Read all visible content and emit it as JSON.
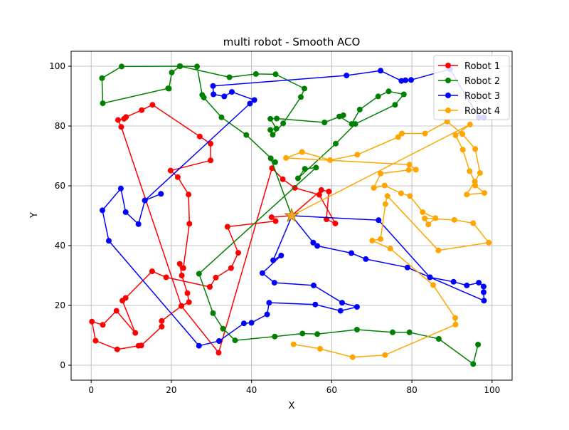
{
  "chart_data": {
    "type": "line",
    "title": "multi robot - Smooth ACO",
    "xlabel": "X",
    "ylabel": "Y",
    "xlim": [
      -5,
      105
    ],
    "ylim": [
      -5,
      105
    ],
    "xticks": [
      0,
      20,
      40,
      60,
      80,
      100
    ],
    "yticks": [
      0,
      20,
      40,
      60,
      80,
      100
    ],
    "grid": true,
    "legend_position": "top-right",
    "depot": {
      "x": 50,
      "y": 50,
      "marker": "star",
      "color": "#f5a623"
    },
    "series": [
      {
        "name": "Robot 1",
        "color": "#ff0000",
        "points": [
          [
            50,
            50
          ],
          [
            45,
            49.5
          ],
          [
            46,
            48.2
          ],
          [
            34,
            46.3
          ],
          [
            36.7,
            37.6
          ],
          [
            34.9,
            32.5
          ],
          [
            31.1,
            29.3
          ],
          [
            29.6,
            26.2
          ],
          [
            18.7,
            29.4
          ],
          [
            15.2,
            31.4
          ],
          [
            8.6,
            22.5
          ],
          [
            7.8,
            21.6
          ],
          [
            11,
            10.8
          ],
          [
            6.3,
            18.2
          ],
          [
            2.9,
            13.5
          ],
          [
            0.2,
            14.6
          ],
          [
            1.1,
            8.2
          ],
          [
            6.5,
            5.3
          ],
          [
            11.8,
            6.5
          ],
          [
            12.5,
            6.6
          ],
          [
            17.6,
            12.9
          ],
          [
            17.6,
            14.8
          ],
          [
            22.5,
            19.8
          ],
          [
            24.4,
            21.1
          ],
          [
            24,
            24.1
          ],
          [
            22.6,
            30
          ],
          [
            22.1,
            33.9
          ],
          [
            23,
            32.5
          ],
          [
            24.5,
            47.3
          ],
          [
            24.3,
            57.1
          ],
          [
            21.6,
            62.9
          ],
          [
            19.8,
            65.1
          ],
          [
            29.8,
            68.5
          ],
          [
            29.8,
            74.1
          ],
          [
            27.1,
            76.5
          ],
          [
            15.3,
            87.1
          ],
          [
            12.6,
            85.3
          ],
          [
            8.7,
            83
          ],
          [
            8.2,
            82.4
          ],
          [
            6.7,
            82
          ],
          [
            7.5,
            79.7
          ],
          [
            22.5,
            19.8
          ],
          [
            31.8,
            4.2
          ],
          [
            45.1,
            65.9
          ],
          [
            47.8,
            62.2
          ],
          [
            50.8,
            59.3
          ],
          [
            56.9,
            57
          ],
          [
            60.9,
            47.4
          ],
          [
            58.7,
            48.8
          ],
          [
            59.3,
            58.1
          ],
          [
            57.4,
            58.6
          ],
          [
            50,
            50
          ]
        ]
      },
      {
        "name": "Robot 2",
        "color": "#008000",
        "points": [
          [
            50,
            50
          ],
          [
            44.8,
            69.2
          ],
          [
            45.9,
            67.9
          ],
          [
            38.7,
            77
          ],
          [
            32.5,
            82.9
          ],
          [
            28.1,
            89.5
          ],
          [
            27.7,
            90.4
          ],
          [
            26.4,
            99.9
          ],
          [
            22.1,
            100
          ],
          [
            7.6,
            99.9
          ],
          [
            2.7,
            96
          ],
          [
            2.9,
            87.6
          ],
          [
            19.2,
            92.6
          ],
          [
            19.4,
            92.5
          ],
          [
            20.1,
            97.9
          ],
          [
            22.2,
            100
          ],
          [
            34.5,
            96.3
          ],
          [
            41.1,
            97.4
          ],
          [
            46,
            97.3
          ],
          [
            53.2,
            92.5
          ],
          [
            52.3,
            89.7
          ],
          [
            47.9,
            80.9
          ],
          [
            45.3,
            77.1
          ],
          [
            44.7,
            78.7
          ],
          [
            46.2,
            79.1
          ],
          [
            44.7,
            82.4
          ],
          [
            46.3,
            82.5
          ],
          [
            58.2,
            81.2
          ],
          [
            62.9,
            83.6
          ],
          [
            61.9,
            83.2
          ],
          [
            65,
            80.7
          ],
          [
            67,
            85.5
          ],
          [
            71.6,
            89.9
          ],
          [
            74.2,
            91.6
          ],
          [
            78,
            90.6
          ],
          [
            75.8,
            87.1
          ],
          [
            65.9,
            80.7
          ],
          [
            61,
            74.1
          ],
          [
            51.6,
            62.5
          ],
          [
            53.3,
            65.7
          ],
          [
            56.1,
            66.1
          ],
          [
            26.9,
            30.6
          ],
          [
            30.4,
            17.4
          ],
          [
            32.9,
            12.2
          ],
          [
            35.9,
            8.3
          ],
          [
            45.8,
            9.6
          ],
          [
            52.7,
            10.6
          ],
          [
            56.4,
            10.4
          ],
          [
            66.3,
            11.9
          ],
          [
            75.2,
            11
          ],
          [
            79.4,
            11
          ],
          [
            86.7,
            8.8
          ],
          [
            95.3,
            0.4
          ],
          [
            96.5,
            6.9
          ]
        ]
      },
      {
        "name": "Robot 3",
        "color": "#0000ff",
        "points": [
          [
            50,
            50
          ],
          [
            55.4,
            41
          ],
          [
            56.4,
            39.9
          ],
          [
            64.9,
            37.5
          ],
          [
            68.5,
            35.5
          ],
          [
            78.9,
            32.7
          ],
          [
            84.5,
            29.4
          ],
          [
            90.4,
            27.9
          ],
          [
            93.7,
            26.7
          ],
          [
            96.7,
            27.6
          ],
          [
            97.9,
            26.3
          ],
          [
            97.9,
            24.4
          ],
          [
            98,
            21.6
          ],
          [
            84.5,
            29.4
          ],
          [
            71.7,
            48.5
          ],
          [
            50,
            50
          ],
          [
            50.1,
            50
          ],
          [
            45.4,
            35.1
          ],
          [
            47.4,
            36.7
          ],
          [
            42.7,
            30.8
          ],
          [
            45.7,
            27.6
          ],
          [
            55.5,
            26.7
          ],
          [
            62.6,
            20.9
          ],
          [
            66.3,
            19.5
          ],
          [
            62.2,
            18.2
          ],
          [
            55.9,
            20.3
          ],
          [
            44.4,
            20.9
          ],
          [
            43.9,
            17
          ],
          [
            40,
            14.2
          ],
          [
            38.1,
            14
          ],
          [
            31.9,
            8.1
          ],
          [
            26.9,
            6.5
          ],
          [
            4.4,
            41.6
          ],
          [
            2.8,
            51.8
          ],
          [
            7.4,
            59.1
          ],
          [
            8.6,
            51.2
          ],
          [
            11.8,
            47.2
          ],
          [
            13.4,
            55.1
          ],
          [
            17.4,
            57.3
          ],
          [
            13.4,
            55.1
          ],
          [
            39.6,
            87.5
          ],
          [
            40.7,
            88.7
          ],
          [
            35.1,
            91.4
          ],
          [
            33.2,
            89.9
          ],
          [
            30.5,
            90.6
          ],
          [
            30.4,
            93.4
          ],
          [
            63.7,
            96.9
          ],
          [
            72.2,
            98.5
          ],
          [
            77.4,
            95.1
          ],
          [
            78.4,
            95.3
          ],
          [
            79.8,
            95.4
          ],
          [
            89.5,
            99
          ],
          [
            96.7,
            82.9
          ],
          [
            98,
            82.9
          ]
        ]
      },
      {
        "name": "Robot 4",
        "color": "#ffa500",
        "points": [
          [
            50,
            50
          ],
          [
            94.5,
            80.5
          ],
          [
            90.9,
            76.9
          ],
          [
            92.7,
            72.1
          ],
          [
            94.4,
            64.9
          ],
          [
            95.7,
            61.4
          ],
          [
            95.8,
            60.1
          ],
          [
            98.1,
            57.6
          ],
          [
            93.7,
            57.1
          ],
          [
            97,
            64.3
          ],
          [
            95.8,
            72.3
          ],
          [
            92.6,
            77.3
          ],
          [
            88.8,
            81.5
          ],
          [
            83.3,
            77.5
          ],
          [
            77.5,
            77.5
          ],
          [
            76.6,
            76.3
          ],
          [
            66.4,
            70.4
          ],
          [
            59.6,
            68.6
          ],
          [
            52.6,
            71.3
          ],
          [
            48.6,
            69.3
          ],
          [
            79.4,
            67.1
          ],
          [
            81,
            65.4
          ],
          [
            79.2,
            65.3
          ],
          [
            72.2,
            64.1
          ],
          [
            70.5,
            59.3
          ],
          [
            73.2,
            60.1
          ],
          [
            77.3,
            57.5
          ],
          [
            79.5,
            56.6
          ],
          [
            82.7,
            51.2
          ],
          [
            85.9,
            49.2
          ],
          [
            84.1,
            47.1
          ],
          [
            83.2,
            49.1
          ],
          [
            90.6,
            48.6
          ],
          [
            95.3,
            47.5
          ],
          [
            99.2,
            41
          ],
          [
            86.6,
            38.4
          ],
          [
            73.9,
            56.6
          ],
          [
            73.4,
            53.9
          ],
          [
            72.2,
            42.2
          ],
          [
            70.1,
            41.7
          ],
          [
            74.6,
            39
          ],
          [
            85.3,
            26.8
          ],
          [
            90.8,
            15.8
          ],
          [
            90.9,
            13.6
          ],
          [
            73.3,
            3.4
          ],
          [
            65.2,
            2.7
          ],
          [
            57.1,
            5.5
          ],
          [
            50.5,
            7
          ]
        ]
      }
    ]
  }
}
